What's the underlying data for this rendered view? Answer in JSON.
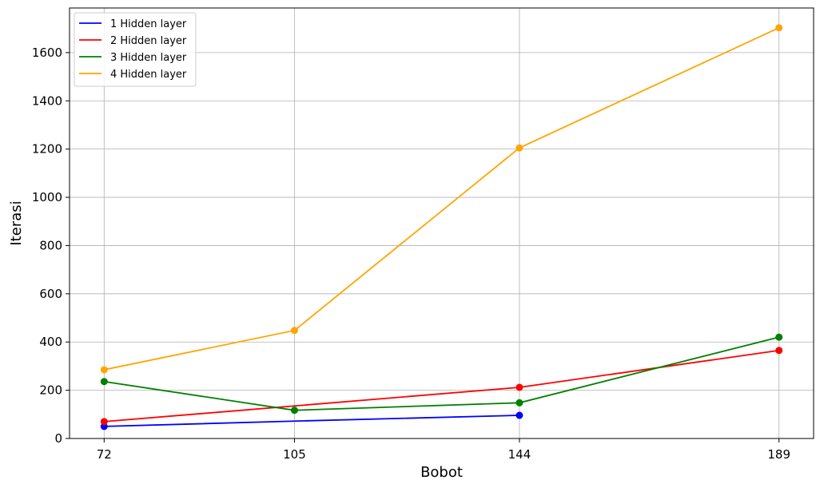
{
  "chart_data": {
    "type": "line",
    "title": "",
    "xlabel": "Bobot",
    "ylabel": "Iterasi",
    "x": [
      72,
      105,
      144,
      189
    ],
    "xlim": [
      66,
      195
    ],
    "ylim": [
      0,
      1785
    ],
    "yticks": [
      0,
      200,
      400,
      600,
      800,
      1000,
      1200,
      1400,
      1600
    ],
    "grid": true,
    "legend_position": "top-left",
    "series": [
      {
        "name": "1 Hidden layer",
        "color": "#0000ff",
        "x": [
          72,
          105,
          144
        ],
        "values": [
          50,
          72,
          96
        ],
        "markers": [
          true,
          false,
          true
        ]
      },
      {
        "name": "2 Hidden layer",
        "color": "#ff0000",
        "x": [
          72,
          105,
          144,
          189
        ],
        "values": [
          70,
          135,
          212,
          365
        ],
        "markers": [
          true,
          false,
          true,
          true
        ]
      },
      {
        "name": "3 Hidden layer",
        "color": "#008000",
        "x": [
          72,
          105,
          144,
          189
        ],
        "values": [
          236,
          117,
          148,
          420
        ],
        "markers": [
          true,
          true,
          true,
          true
        ]
      },
      {
        "name": "4 Hidden layer",
        "color": "#ffa500",
        "x": [
          72,
          105,
          144,
          189
        ],
        "values": [
          285,
          448,
          1205,
          1703
        ],
        "markers": [
          true,
          true,
          true,
          true
        ]
      }
    ]
  }
}
